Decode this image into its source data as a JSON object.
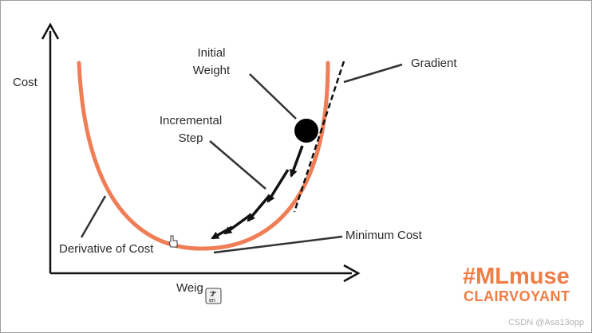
{
  "labels": {
    "cost": "Cost",
    "weight": "Weig",
    "initial_weight_line1": "Initial",
    "initial_weight_line2": "Weight",
    "incremental_step_line1": "Incremental",
    "incremental_step_line2": "Step",
    "gradient": "Gradient",
    "derivative_of_cost": "Derivative of Cost",
    "minimum_cost": "Minimum Cost"
  },
  "brand": {
    "hashtag": "#MLmuse",
    "name": "CLAIRVOYANT"
  },
  "watermark": "CSDN @Asa13opp",
  "lang_badge": "en",
  "colors": {
    "curve": "#ef7d55",
    "brand": "#ef7d45",
    "ink": "#111111"
  }
}
